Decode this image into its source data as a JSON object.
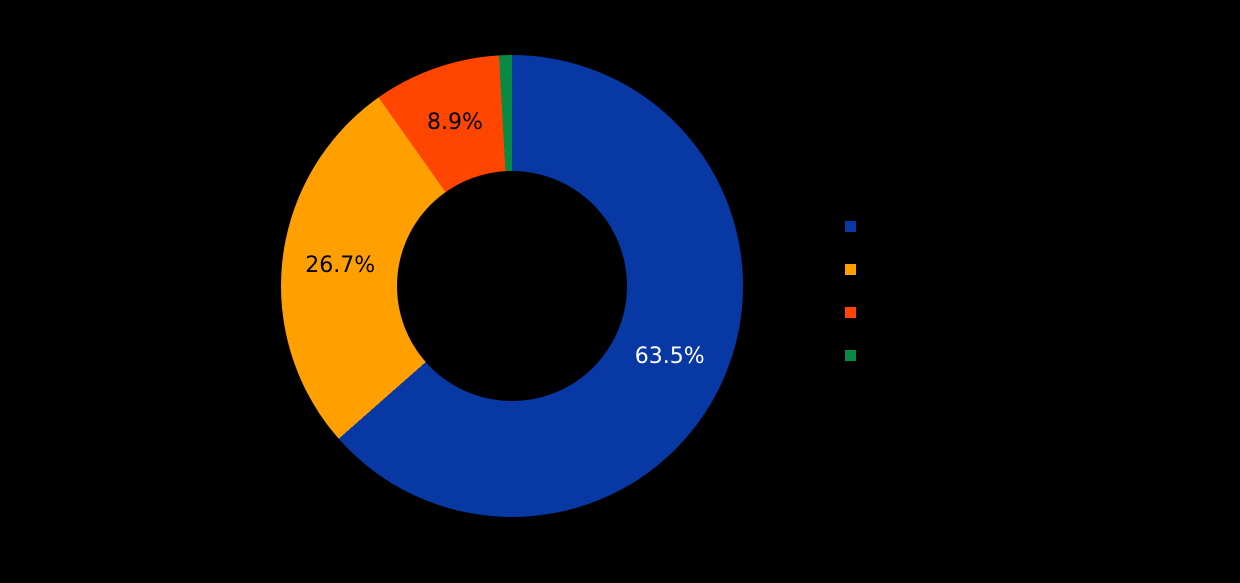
{
  "page": {
    "background": "#000000"
  },
  "chart_data": {
    "type": "pie",
    "subtype": "donut",
    "title": "",
    "series": [
      {
        "value": 63.5,
        "color": "#0838A3",
        "pct_label": "63.5%",
        "pct_label_color": "#ffffff"
      },
      {
        "value": 26.7,
        "color": "#FFA000",
        "pct_label": "26.7%",
        "pct_label_color": "#000000"
      },
      {
        "value": 8.9,
        "color": "#FF4500",
        "pct_label": "8.9%",
        "pct_label_color": "#000000"
      },
      {
        "value": 0.9,
        "color": "#078A43",
        "pct_label": "",
        "pct_label_color": "#000000"
      }
    ],
    "start_angle_deg": 90,
    "direction": "clockwise",
    "donut_hole_ratio": 0.5,
    "legend_position": "right",
    "legend_labels_visible": false,
    "background": "#000000"
  }
}
